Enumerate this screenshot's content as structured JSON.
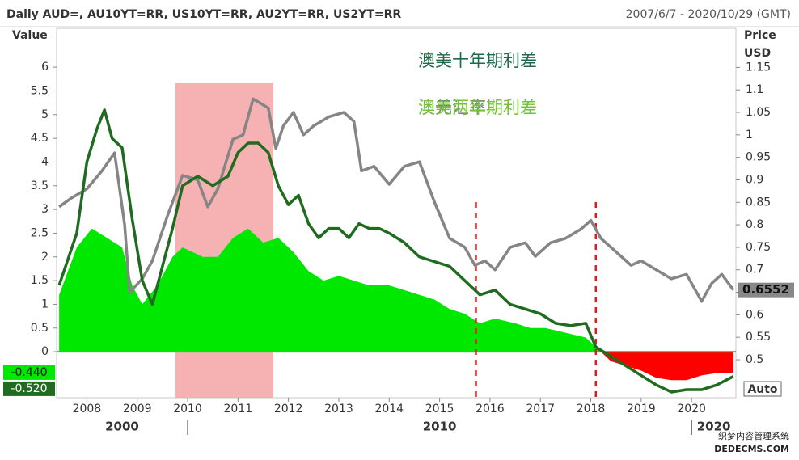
{
  "chart_data": {
    "type": "line",
    "title": "Daily AUD=, AU10YT=RR, US10YT=RR, AU2YT=RR, US2YT=RR",
    "subtitle": "2007/6/7 - 2020/10/29 (GMT)",
    "y_label": "Value",
    "y2_label": "Price",
    "y2_unit": "USD",
    "scale_mode": "Auto",
    "xlim": [
      2007.4,
      2020.88
    ],
    "xticks": [
      2008,
      2009,
      2010,
      2011,
      2012,
      2013,
      2014,
      2015,
      2016,
      2017,
      2018,
      2019,
      2020
    ],
    "decades": [
      2000,
      2010,
      2020
    ],
    "ylim": [
      -0.97,
      6.82
    ],
    "yticks": [
      0,
      0.5,
      1,
      1.5,
      2,
      2.5,
      3,
      3.5,
      4,
      4.5,
      5,
      5.5,
      6
    ],
    "y2lim": [
      0.4155,
      1.237
    ],
    "y2ticks": [
      0.5,
      0.55,
      0.6,
      0.65,
      0.7,
      0.75,
      0.8,
      0.85,
      0.9,
      0.95,
      1,
      1.05,
      1.1,
      1.15
    ],
    "highlight": [
      2009.75,
      2011.7
    ],
    "highlight_color": "#f4a5a5",
    "vlines": [
      2015.72,
      2018.1
    ],
    "vline_color": "#d42020",
    "watermark": [
      "织梦内容管理系统",
      "DEDECMS.COM"
    ],
    "series": [
      {
        "name": "澳美两年期利差",
        "kind": "area",
        "color": "#00e800",
        "negative_color": "#ff0000",
        "legend_color": "#72c234",
        "last_label": "-0.440",
        "x": [
          2007.45,
          2007.8,
          2008.1,
          2008.4,
          2008.7,
          2008.9,
          2009.1,
          2009.4,
          2009.7,
          2009.9,
          2010.3,
          2010.6,
          2010.9,
          2011.2,
          2011.5,
          2011.8,
          2012.1,
          2012.4,
          2012.7,
          2013.0,
          2013.3,
          2013.6,
          2014.0,
          2014.3,
          2014.6,
          2014.9,
          2015.2,
          2015.5,
          2015.8,
          2016.1,
          2016.5,
          2016.8,
          2017.1,
          2017.5,
          2017.9,
          2018.1,
          2018.4,
          2018.7,
          2019.0,
          2019.3,
          2019.6,
          2019.9,
          2020.2,
          2020.5,
          2020.83
        ],
        "values": [
          1.2,
          2.2,
          2.6,
          2.4,
          2.2,
          1.4,
          1.0,
          1.4,
          2.0,
          2.2,
          2.0,
          2.0,
          2.4,
          2.6,
          2.3,
          2.4,
          2.1,
          1.7,
          1.5,
          1.6,
          1.5,
          1.4,
          1.4,
          1.3,
          1.2,
          1.1,
          0.9,
          0.8,
          0.6,
          0.7,
          0.6,
          0.5,
          0.5,
          0.4,
          0.3,
          0.1,
          -0.2,
          -0.3,
          -0.4,
          -0.55,
          -0.6,
          -0.6,
          -0.5,
          -0.45,
          -0.44
        ]
      },
      {
        "name": "澳美十年期利差",
        "kind": "line",
        "color": "#1f6b1f",
        "legend_color": "#1d6b4a",
        "last_label": "-0.520",
        "x": [
          2007.45,
          2007.8,
          2008.0,
          2008.2,
          2008.35,
          2008.5,
          2008.7,
          2008.9,
          2009.1,
          2009.3,
          2009.5,
          2009.7,
          2009.9,
          2010.2,
          2010.5,
          2010.8,
          2011.0,
          2011.2,
          2011.4,
          2011.6,
          2011.8,
          2012.0,
          2012.2,
          2012.4,
          2012.6,
          2012.8,
          2013.0,
          2013.2,
          2013.4,
          2013.6,
          2013.8,
          2014.0,
          2014.3,
          2014.6,
          2014.9,
          2015.2,
          2015.5,
          2015.8,
          2016.1,
          2016.4,
          2016.7,
          2017.0,
          2017.3,
          2017.6,
          2017.9,
          2018.1,
          2018.4,
          2018.7,
          2019.0,
          2019.3,
          2019.6,
          2019.9,
          2020.2,
          2020.5,
          2020.83
        ],
        "values": [
          1.4,
          2.5,
          4.0,
          4.7,
          5.1,
          4.5,
          4.3,
          2.8,
          1.5,
          1.0,
          1.8,
          2.6,
          3.5,
          3.7,
          3.5,
          3.7,
          4.2,
          4.4,
          4.4,
          4.2,
          3.5,
          3.1,
          3.3,
          2.7,
          2.4,
          2.6,
          2.6,
          2.4,
          2.7,
          2.6,
          2.6,
          2.5,
          2.3,
          2.0,
          1.9,
          1.8,
          1.5,
          1.2,
          1.3,
          1.0,
          0.9,
          0.8,
          0.6,
          0.55,
          0.6,
          0.1,
          -0.1,
          -0.3,
          -0.5,
          -0.7,
          -0.85,
          -0.8,
          -0.8,
          -0.7,
          -0.52
        ]
      },
      {
        "name": "澳元汇率",
        "kind": "line",
        "axis": "y2",
        "color": "#858585",
        "legend_color": "#808080",
        "last_label": "0.6552",
        "x": [
          2007.45,
          2007.7,
          2008.0,
          2008.3,
          2008.55,
          2008.75,
          2008.85,
          2009.1,
          2009.3,
          2009.6,
          2009.9,
          2010.2,
          2010.4,
          2010.6,
          2010.9,
          2011.1,
          2011.3,
          2011.6,
          2011.75,
          2011.9,
          2012.1,
          2012.3,
          2012.5,
          2012.8,
          2013.1,
          2013.3,
          2013.45,
          2013.7,
          2014.0,
          2014.3,
          2014.6,
          2014.9,
          2015.2,
          2015.5,
          2015.7,
          2015.9,
          2016.1,
          2016.4,
          2016.7,
          2016.9,
          2017.2,
          2017.5,
          2017.8,
          2018.0,
          2018.2,
          2018.5,
          2018.8,
          2019.0,
          2019.3,
          2019.6,
          2019.9,
          2020.2,
          2020.4,
          2020.6,
          2020.83
        ],
        "values": [
          0.84,
          0.86,
          0.88,
          0.92,
          0.96,
          0.8,
          0.65,
          0.68,
          0.72,
          0.82,
          0.91,
          0.9,
          0.84,
          0.88,
          0.99,
          1.0,
          1.08,
          1.06,
          0.97,
          1.02,
          1.05,
          1.0,
          1.02,
          1.04,
          1.05,
          1.03,
          0.92,
          0.93,
          0.89,
          0.93,
          0.94,
          0.85,
          0.77,
          0.75,
          0.71,
          0.72,
          0.7,
          0.75,
          0.76,
          0.73,
          0.76,
          0.77,
          0.79,
          0.81,
          0.77,
          0.74,
          0.71,
          0.72,
          0.7,
          0.68,
          0.69,
          0.63,
          0.67,
          0.69,
          0.6552
        ]
      }
    ]
  }
}
